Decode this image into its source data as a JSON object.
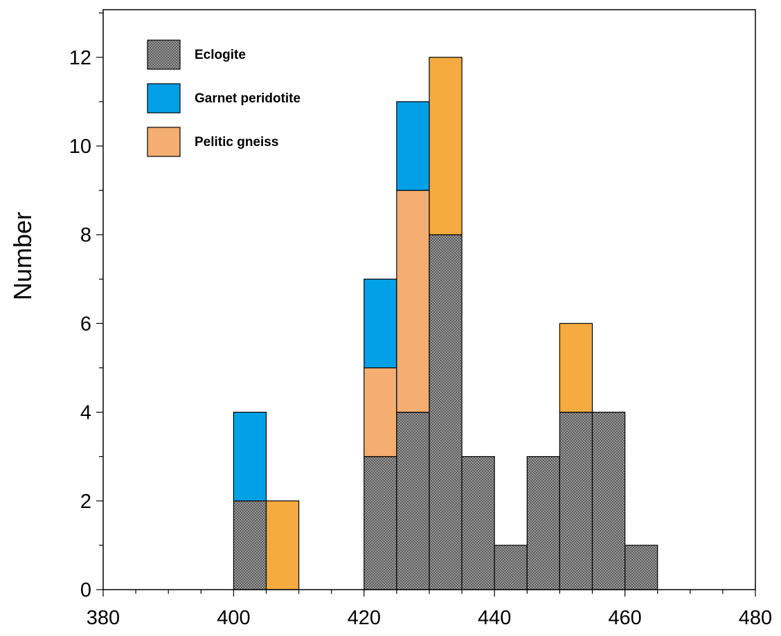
{
  "chart_data": {
    "type": "bar",
    "stacked": true,
    "ylabel": "Number",
    "xlabel": "",
    "xlim": [
      380,
      480
    ],
    "ylim": [
      0,
      13
    ],
    "x_ticks": [
      380,
      400,
      420,
      440,
      460,
      480
    ],
    "y_ticks": [
      0,
      2,
      4,
      6,
      8,
      10,
      12
    ],
    "x_minor_step": 5,
    "y_minor_step": 1,
    "bin_width": 5,
    "colors": {
      "eclogite": "#8c8c8c",
      "garnet_peridotite": "#00a0e6",
      "pelitic_gneiss_light": "#f4ae72",
      "pelitic_gneiss_dark": "#f5ab40",
      "edge": "#000000"
    },
    "legend": {
      "position": "top-left",
      "items": [
        {
          "label": "Eclogite",
          "key": "eclogite",
          "pattern": "stipple"
        },
        {
          "label": "Garnet peridotite",
          "key": "garnet_peridotite"
        },
        {
          "label": "Pelitic gneiss",
          "key": "pelitic_gneiss_light"
        }
      ]
    },
    "bars": [
      {
        "x0": 400,
        "segments": [
          {
            "key": "eclogite",
            "value": 2
          },
          {
            "key": "garnet_peridotite",
            "value": 2
          }
        ]
      },
      {
        "x0": 405,
        "segments": [
          {
            "key": "pelitic_gneiss_dark",
            "value": 2
          }
        ]
      },
      {
        "x0": 420,
        "segments": [
          {
            "key": "eclogite",
            "value": 3
          },
          {
            "key": "pelitic_gneiss_light",
            "value": 2
          },
          {
            "key": "garnet_peridotite",
            "value": 2
          }
        ]
      },
      {
        "x0": 425,
        "segments": [
          {
            "key": "eclogite",
            "value": 4
          },
          {
            "key": "pelitic_gneiss_light",
            "value": 5
          },
          {
            "key": "garnet_peridotite",
            "value": 2
          }
        ]
      },
      {
        "x0": 430,
        "segments": [
          {
            "key": "eclogite",
            "value": 8
          },
          {
            "key": "pelitic_gneiss_dark",
            "value": 4
          }
        ]
      },
      {
        "x0": 435,
        "segments": [
          {
            "key": "eclogite",
            "value": 3
          }
        ]
      },
      {
        "x0": 440,
        "segments": [
          {
            "key": "eclogite",
            "value": 1
          }
        ]
      },
      {
        "x0": 445,
        "segments": [
          {
            "key": "eclogite",
            "value": 3
          }
        ]
      },
      {
        "x0": 450,
        "segments": [
          {
            "key": "eclogite",
            "value": 4
          },
          {
            "key": "pelitic_gneiss_dark",
            "value": 2
          }
        ]
      },
      {
        "x0": 455,
        "segments": [
          {
            "key": "eclogite",
            "value": 4
          }
        ]
      },
      {
        "x0": 460,
        "segments": [
          {
            "key": "eclogite",
            "value": 1
          }
        ]
      }
    ]
  }
}
